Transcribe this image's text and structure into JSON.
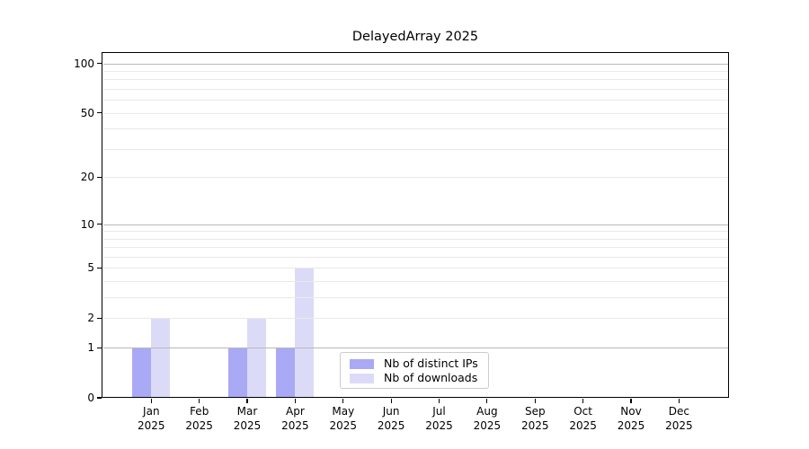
{
  "figure": {
    "title": "DelayedArray 2025"
  },
  "chart_data": {
    "type": "bar",
    "title": "DelayedArray 2025",
    "categories": [
      "Jan",
      "Feb",
      "Mar",
      "Apr",
      "May",
      "Jun",
      "Jul",
      "Aug",
      "Sep",
      "Oct",
      "Nov",
      "Dec"
    ],
    "x_year_label": "2025",
    "series": [
      {
        "name": "Nb of distinct IPs",
        "color": "#a9a9f5",
        "values": [
          1,
          0,
          1,
          1,
          0,
          0,
          0,
          0,
          0,
          0,
          0,
          0
        ]
      },
      {
        "name": "Nb of downloads",
        "color": "#dbdbf8",
        "values": [
          2,
          0,
          2,
          5,
          0,
          0,
          0,
          0,
          0,
          0,
          0,
          0
        ]
      }
    ],
    "xlabel": "",
    "ylabel": "",
    "yscale": "log1p",
    "ylim": [
      0,
      116
    ],
    "yticks": [
      0,
      1,
      2,
      5,
      10,
      20,
      50,
      100
    ],
    "yticks_minor": [
      3,
      4,
      6,
      7,
      8,
      9,
      30,
      40,
      60,
      70,
      80,
      90
    ],
    "decade_gridlines": [
      1,
      10,
      100
    ],
    "grid": true,
    "legend_position": "inside-bottom-center",
    "colors": {
      "grid_decade": "#b8b8b8",
      "grid_light": "#e9e9e9",
      "spine": "#000000",
      "text": "#000000",
      "legend_border": "#cccccc"
    }
  }
}
